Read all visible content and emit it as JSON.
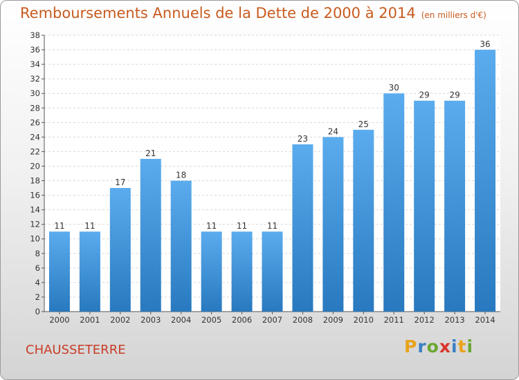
{
  "title": "Remboursements Annuels de la Dette de 2000 à 2014",
  "subtitle": "(en milliers d'€)",
  "commune": "CHAUSSETERRE",
  "logo_letters": [
    "P",
    "r",
    "o",
    "x",
    "i",
    "t",
    "i"
  ],
  "colors": {
    "bar_top": "#5aacee",
    "bar_bottom": "#2879bf",
    "title": "#c85a1e",
    "commune": "#c83c28"
  },
  "chart_data": {
    "type": "bar",
    "title": "Remboursements Annuels de la Dette de 2000 à 2014",
    "subtitle": "(en milliers d'€)",
    "categories": [
      "2000",
      "2001",
      "2002",
      "2003",
      "2004",
      "2005",
      "2006",
      "2007",
      "2008",
      "2009",
      "2010",
      "2011",
      "2012",
      "2013",
      "2014"
    ],
    "values": [
      11,
      11,
      17,
      21,
      18,
      11,
      11,
      11,
      23,
      24,
      25,
      30,
      29,
      29,
      36
    ],
    "ylim": [
      0,
      38
    ],
    "yticks": [
      0,
      2,
      4,
      6,
      8,
      10,
      12,
      14,
      16,
      18,
      20,
      22,
      24,
      26,
      28,
      30,
      32,
      34,
      36,
      38
    ],
    "grid": true,
    "data_labels": true
  }
}
